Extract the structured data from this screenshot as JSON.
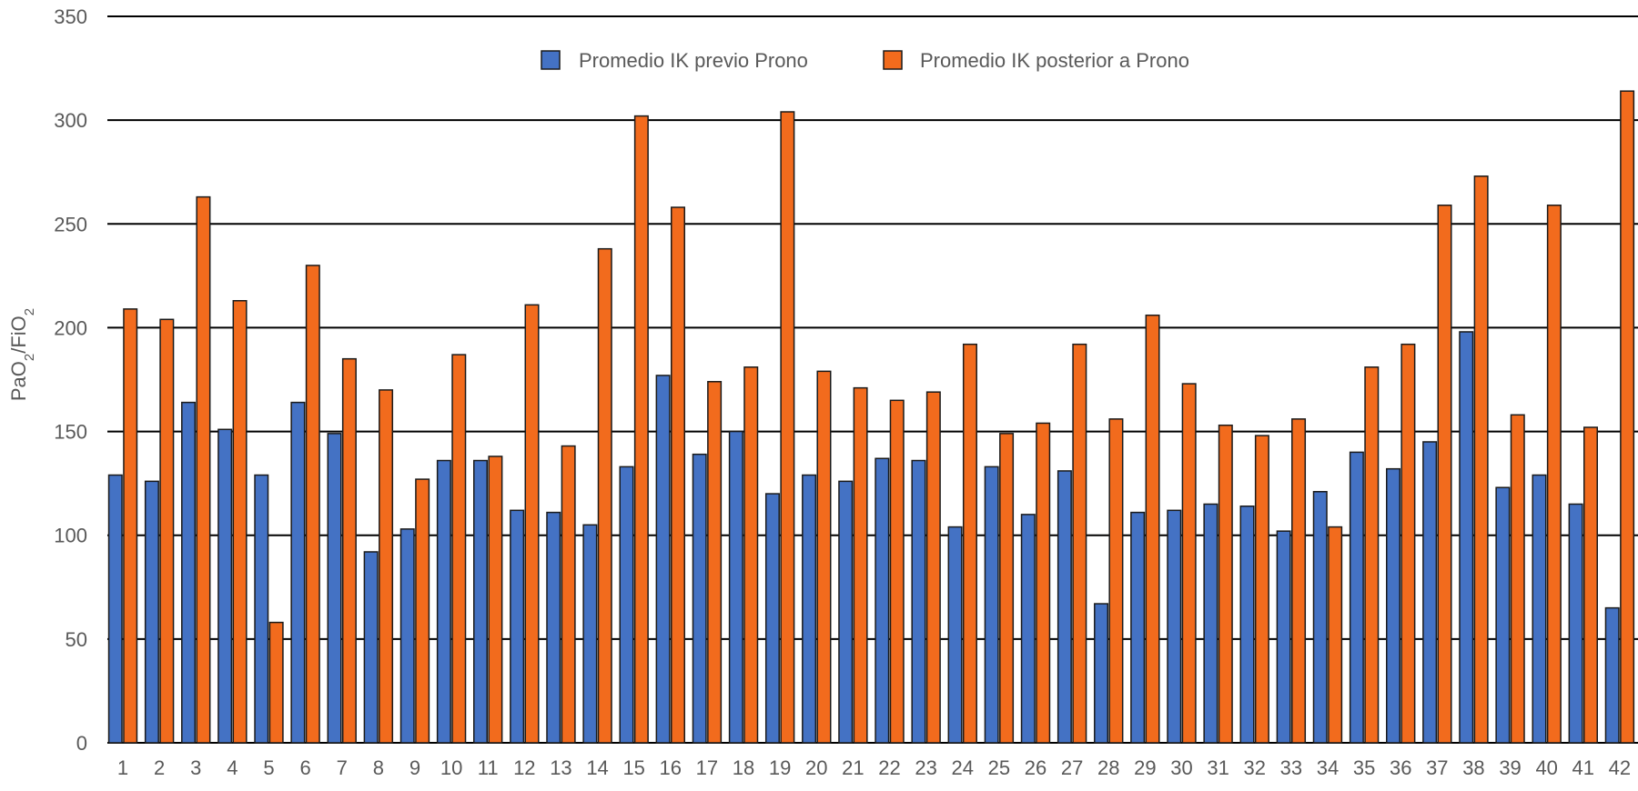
{
  "chart_data": {
    "type": "bar",
    "title": "",
    "xlabel": "",
    "ylabel": {
      "base": "PaO",
      "sub1": "2",
      "mid": "/FiO",
      "sub2": "2"
    },
    "ylim": [
      0,
      350
    ],
    "yticks": [
      0,
      50,
      100,
      150,
      200,
      250,
      300,
      350
    ],
    "grid": true,
    "legend_position": "top-center",
    "categories": [
      "1",
      "2",
      "3",
      "4",
      "5",
      "6",
      "7",
      "8",
      "9",
      "10",
      "11",
      "12",
      "13",
      "14",
      "15",
      "16",
      "17",
      "18",
      "19",
      "20",
      "21",
      "22",
      "23",
      "24",
      "25",
      "26",
      "27",
      "28",
      "29",
      "30",
      "31",
      "32",
      "33",
      "34",
      "35",
      "36",
      "37",
      "38",
      "39",
      "40",
      "41",
      "42"
    ],
    "series": [
      {
        "name": "Promedio IK previo Prono",
        "color": "#4472C4",
        "values": [
          129,
          126,
          164,
          151,
          129,
          164,
          149,
          92,
          103,
          136,
          136,
          112,
          111,
          105,
          133,
          177,
          139,
          150,
          120,
          129,
          126,
          137,
          136,
          104,
          133,
          110,
          131,
          67,
          111,
          112,
          115,
          114,
          102,
          121,
          140,
          132,
          145,
          198,
          123,
          129,
          115,
          65
        ]
      },
      {
        "name": "Promedio IK posterior a Prono",
        "color": "#F26B1D",
        "values": [
          209,
          204,
          263,
          213,
          58,
          230,
          185,
          170,
          127,
          187,
          138,
          211,
          143,
          238,
          302,
          258,
          174,
          181,
          304,
          179,
          171,
          165,
          169,
          192,
          149,
          154,
          192,
          156,
          206,
          173,
          153,
          148,
          156,
          104,
          181,
          192,
          259,
          273,
          158,
          259,
          152,
          314
        ]
      }
    ]
  }
}
